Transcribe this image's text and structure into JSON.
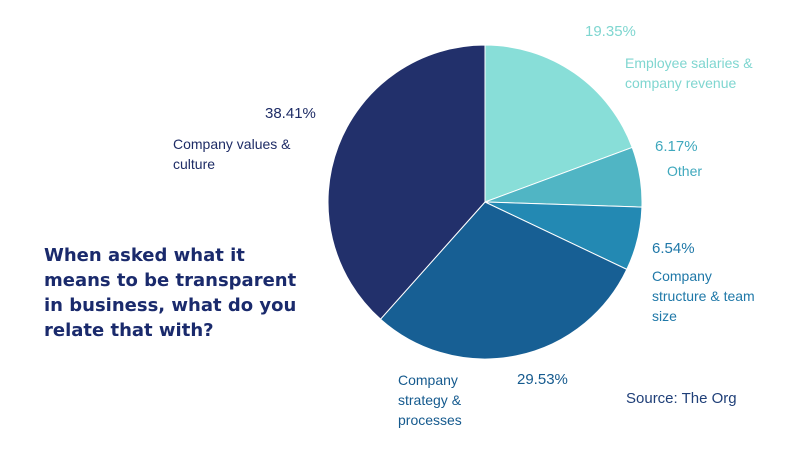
{
  "title": "When asked what it means to be transparent in business, what do you relate that with?",
  "source": "Source: The Org",
  "chart_data": {
    "type": "pie",
    "start_angle_deg": 0,
    "direction": "clockwise",
    "slices": [
      {
        "label": "Employee salaries & company revenue",
        "label_lines": [
          "Employee salaries &",
          "company revenue"
        ],
        "value": 19.35,
        "value_label": "19.35%",
        "color": "#88ded8",
        "text_color": "#7fd6d0"
      },
      {
        "label": "Other",
        "label_lines": [
          "Other"
        ],
        "value": 6.17,
        "value_label": "6.17%",
        "color": "#50b5c4",
        "text_color": "#3fa8bd"
      },
      {
        "label": "Company structure & team size",
        "label_lines": [
          "Company",
          "structure & team",
          "size"
        ],
        "value": 6.54,
        "value_label": "6.54%",
        "color": "#2389b3",
        "text_color": "#1f78a8"
      },
      {
        "label": "Company strategy & processes",
        "label_lines": [
          "Company",
          "strategy &",
          "processes"
        ],
        "value": 29.53,
        "value_label": "29.53%",
        "color": "#175f94",
        "text_color": "#155a8e"
      },
      {
        "label": "Company values & culture",
        "label_lines": [
          "Company values &",
          "culture"
        ],
        "value": 38.41,
        "value_label": "38.41%",
        "color": "#22306b",
        "text_color": "#1e2c66"
      }
    ]
  }
}
